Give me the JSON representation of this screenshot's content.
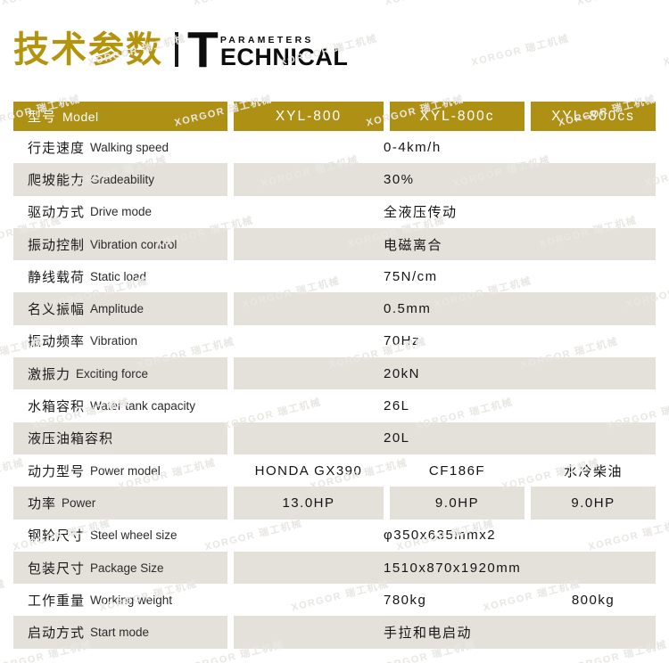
{
  "title": {
    "zh": "技术参数",
    "en_initial": "T",
    "en_top": "PARAMETERS",
    "en_bottom": "ECHNICAL"
  },
  "watermark": {
    "text": "XORGOR 瑞工机械"
  },
  "colors": {
    "gold_header": "#ad9014",
    "gold_title": "#b3940c",
    "row_gray": "#e4e1db",
    "header_text": "#ffffff",
    "body_text": "#1c1c1c",
    "watermark": "#e9e7e3"
  },
  "table": {
    "header": {
      "label_zh": "型号",
      "label_en": "Model",
      "models": [
        "XYL-800",
        "XYL-800c",
        "XYL-800cs"
      ]
    },
    "rows": [
      {
        "label_zh": "行走速度",
        "label_en": "Walking speed",
        "type": "merged",
        "values": [
          "0-4km/h"
        ]
      },
      {
        "label_zh": "爬坡能力",
        "label_en": "Gradeability",
        "type": "merged",
        "values": [
          "30%"
        ]
      },
      {
        "label_zh": "驱动方式",
        "label_en": "Drive mode",
        "type": "merged",
        "values": [
          "全液压传动"
        ]
      },
      {
        "label_zh": "振动控制",
        "label_en": "Vibration control",
        "type": "merged",
        "values": [
          "电磁离合"
        ]
      },
      {
        "label_zh": "静线载荷",
        "label_en": "Static load",
        "type": "merged",
        "values": [
          "75N/cm"
        ]
      },
      {
        "label_zh": "名义振幅",
        "label_en": "Amplitude",
        "type": "merged",
        "values": [
          "0.5mm"
        ]
      },
      {
        "label_zh": "振动频率",
        "label_en": "Vibration",
        "type": "merged",
        "values": [
          "70Hz"
        ]
      },
      {
        "label_zh": "激振力",
        "label_en": "Exciting force",
        "type": "merged",
        "values": [
          "20kN"
        ]
      },
      {
        "label_zh": "水箱容积",
        "label_en": "Water tank capacity",
        "type": "merged",
        "values": [
          "26L"
        ]
      },
      {
        "label_zh": "液压油箱容积",
        "label_en": "",
        "type": "merged",
        "values": [
          "20L"
        ]
      },
      {
        "label_zh": "动力型号",
        "label_en": "Power model",
        "type": "columns",
        "values": [
          "HONDA GX390",
          "CF186F",
          "水冷柴油"
        ]
      },
      {
        "label_zh": "功率",
        "label_en": "Power",
        "type": "columns",
        "values": [
          "13.0HP",
          "9.0HP",
          "9.0HP"
        ]
      },
      {
        "label_zh": "钢轮尺寸",
        "label_en": "Steel wheel size",
        "type": "merged",
        "values": [
          "φ350x635mmx2"
        ]
      },
      {
        "label_zh": "包装尺寸",
        "label_en": "Package Size",
        "type": "merged",
        "values": [
          "1510x870x1920mm"
        ]
      },
      {
        "label_zh": "工作重量",
        "label_en": "Working weight",
        "type": "split",
        "values": [
          "780kg",
          "800kg"
        ]
      },
      {
        "label_zh": "启动方式",
        "label_en": "Start mode",
        "type": "merged",
        "values": [
          "手拉和电启动"
        ]
      }
    ]
  }
}
